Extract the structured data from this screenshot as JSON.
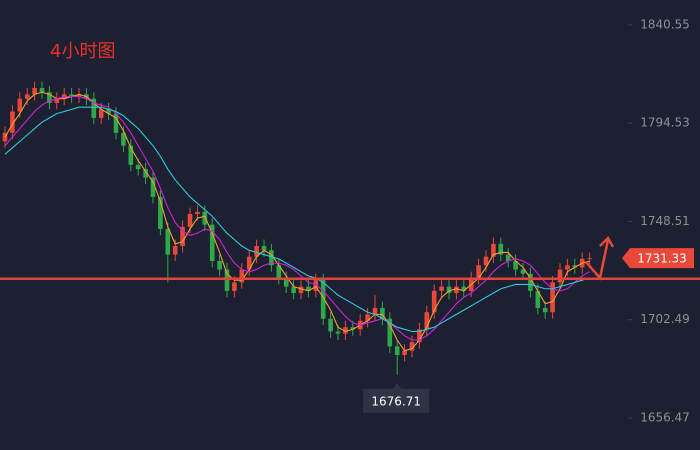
{
  "chart_data": {
    "type": "candlestick",
    "title": "4小时图",
    "open": [
      1786,
      1790,
      1800,
      1806,
      1808,
      1811,
      1809,
      1804,
      1806,
      1808,
      1807,
      1808,
      1806,
      1797,
      1801,
      1799,
      1790,
      1784,
      1775,
      1773,
      1769,
      1760,
      1745,
      1733,
      1737,
      1746,
      1752,
      1753,
      1747,
      1730,
      1726,
      1716,
      1720,
      1726,
      1732,
      1737,
      1735,
      1728,
      1722,
      1718,
      1715,
      1718,
      1716,
      1721,
      1703,
      1697,
      1696,
      1699,
      1698,
      1702,
      1705,
      1708,
      1703,
      1690,
      1686,
      1688,
      1692,
      1698,
      1706,
      1716,
      1718,
      1715,
      1718,
      1716,
      1722,
      1728,
      1732,
      1738,
      1733,
      1730,
      1726,
      1724,
      1716,
      1708,
      1706,
      1720,
      1726,
      1728,
      1727,
      1731
    ],
    "high": [
      1793,
      1803,
      1809,
      1811,
      1814,
      1814,
      1812,
      1809,
      1811,
      1811,
      1811,
      1811,
      1809,
      1804,
      1804,
      1802,
      1793,
      1787,
      1778,
      1776,
      1772,
      1763,
      1748,
      1740,
      1749,
      1755,
      1756,
      1756,
      1750,
      1733,
      1729,
      1723,
      1729,
      1735,
      1740,
      1740,
      1738,
      1731,
      1725,
      1721,
      1721,
      1721,
      1724,
      1724,
      1706,
      1700,
      1702,
      1702,
      1705,
      1708,
      1714,
      1711,
      1706,
      1693,
      1691,
      1695,
      1701,
      1709,
      1719,
      1721,
      1721,
      1721,
      1721,
      1725,
      1731,
      1735,
      1741,
      1741,
      1736,
      1733,
      1729,
      1727,
      1719,
      1711,
      1723,
      1729,
      1731,
      1731,
      1734,
      1734
    ],
    "low": [
      1783,
      1787,
      1797,
      1803,
      1805,
      1806,
      1801,
      1801,
      1803,
      1804,
      1804,
      1803,
      1794,
      1794,
      1796,
      1787,
      1781,
      1772,
      1770,
      1766,
      1757,
      1742,
      1720,
      1730,
      1734,
      1743,
      1749,
      1744,
      1727,
      1723,
      1713,
      1713,
      1717,
      1723,
      1729,
      1732,
      1725,
      1719,
      1715,
      1712,
      1712,
      1713,
      1713,
      1700,
      1694,
      1693,
      1693,
      1695,
      1695,
      1699,
      1702,
      1700,
      1687,
      1676.71,
      1683,
      1685,
      1689,
      1695,
      1703,
      1713,
      1712,
      1712,
      1713,
      1713,
      1719,
      1725,
      1729,
      1730,
      1727,
      1723,
      1721,
      1713,
      1705,
      1703,
      1703,
      1717,
      1723,
      1724,
      1724,
      1728
    ],
    "close": [
      1790,
      1800,
      1806,
      1808,
      1811,
      1809,
      1804,
      1806,
      1808,
      1807,
      1808,
      1806,
      1797,
      1801,
      1799,
      1790,
      1784,
      1775,
      1773,
      1769,
      1760,
      1745,
      1733,
      1737,
      1746,
      1752,
      1753,
      1747,
      1730,
      1726,
      1716,
      1720,
      1726,
      1732,
      1737,
      1735,
      1728,
      1722,
      1718,
      1715,
      1718,
      1716,
      1721,
      1703,
      1697,
      1696,
      1699,
      1698,
      1702,
      1705,
      1708,
      1703,
      1690,
      1686,
      1688,
      1692,
      1698,
      1706,
      1716,
      1718,
      1715,
      1718,
      1716,
      1722,
      1728,
      1732,
      1738,
      1733,
      1730,
      1726,
      1724,
      1716,
      1708,
      1706,
      1720,
      1726,
      1728,
      1727,
      1731,
      1731.33
    ],
    "up_color": "#e8473a",
    "down_color": "#2fa84a",
    "series": [
      {
        "color": "#f0a030",
        "values": [
          1788,
          1794,
          1799,
          1805,
          1808,
          1809,
          1808,
          1806,
          1806,
          1807,
          1808,
          1807,
          1804,
          1801,
          1799,
          1797,
          1791,
          1783,
          1777,
          1772,
          1767,
          1758,
          1746,
          1738,
          1739,
          1745,
          1750,
          1751,
          1743,
          1734,
          1724,
          1721,
          1721,
          1726,
          1732,
          1735,
          1733,
          1728,
          1723,
          1718,
          1717,
          1716,
          1718,
          1713,
          1707,
          1699,
          1697,
          1698,
          1700,
          1702,
          1705,
          1705,
          1700,
          1693,
          1688,
          1689,
          1693,
          1699,
          1707,
          1713,
          1716,
          1717,
          1716,
          1719,
          1722,
          1727,
          1733,
          1734,
          1734,
          1730,
          1727,
          1722,
          1716,
          1710,
          1711,
          1717,
          1725,
          1727,
          1729,
          1730
        ]
      },
      {
        "color": "#d020d8",
        "values": [
          1784,
          1788,
          1792,
          1796,
          1800,
          1803,
          1805,
          1806,
          1807,
          1807,
          1807,
          1806,
          1804,
          1803,
          1802,
          1799,
          1795,
          1790,
          1784,
          1778,
          1772,
          1764,
          1755,
          1748,
          1744,
          1742,
          1743,
          1745,
          1744,
          1740,
          1734,
          1729,
          1726,
          1725,
          1726,
          1728,
          1729,
          1729,
          1728,
          1726,
          1723,
          1720,
          1719,
          1716,
          1712,
          1708,
          1704,
          1701,
          1700,
          1701,
          1702,
          1703,
          1701,
          1698,
          1695,
          1693,
          1693,
          1695,
          1698,
          1702,
          1706,
          1710,
          1713,
          1715,
          1718,
          1721,
          1725,
          1728,
          1730,
          1731,
          1730,
          1728,
          1724,
          1720,
          1717,
          1716,
          1717,
          1720,
          1723,
          1725
        ]
      },
      {
        "color": "#30c8e0",
        "values": [
          1780,
          1783,
          1786,
          1789,
          1792,
          1795,
          1797,
          1799,
          1800,
          1801,
          1802,
          1802,
          1802,
          1802,
          1801,
          1800,
          1798,
          1795,
          1792,
          1788,
          1784,
          1779,
          1773,
          1768,
          1764,
          1760,
          1757,
          1754,
          1751,
          1747,
          1743,
          1740,
          1737,
          1735,
          1734,
          1733,
          1732,
          1731,
          1729,
          1727,
          1725,
          1723,
          1722,
          1720,
          1717,
          1714,
          1712,
          1710,
          1708,
          1706,
          1705,
          1703,
          1701,
          1699,
          1698,
          1697,
          1697,
          1698,
          1699,
          1701,
          1703,
          1705,
          1707,
          1709,
          1711,
          1713,
          1715,
          1717,
          1718,
          1719,
          1719,
          1719,
          1718,
          1717,
          1717,
          1718,
          1719,
          1720,
          1721,
          1722
        ]
      }
    ],
    "hline": 1721.7,
    "hline_color": "#e0453a",
    "ylim": [
      1641.5,
      1852.2
    ],
    "yticks": [
      1840.55,
      1794.53,
      1748.51,
      1702.49,
      1656.47
    ]
  }
}
